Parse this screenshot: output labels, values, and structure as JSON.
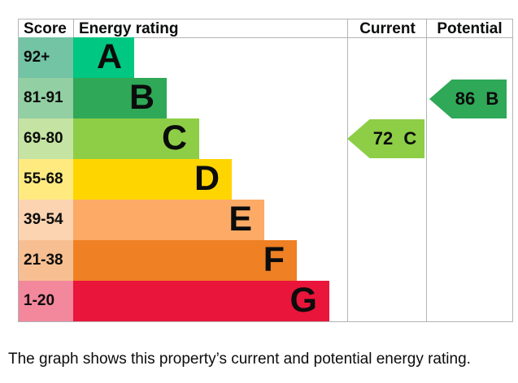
{
  "chart_data": {
    "type": "bar",
    "title": "",
    "categories": [
      "A",
      "B",
      "C",
      "D",
      "E",
      "F",
      "G"
    ],
    "score_ranges": [
      "92+",
      "81-91",
      "69-80",
      "55-68",
      "39-54",
      "21-38",
      "1-20"
    ],
    "band_colors": [
      "#00c781",
      "#2fa857",
      "#8dce46",
      "#ffd500",
      "#fcaa65",
      "#ef8023",
      "#e9153b"
    ],
    "score_cell_colors": [
      "#73c3a5",
      "#92cfa2",
      "#c5e3a2",
      "#ffea80",
      "#fdd4b2",
      "#f7bf91",
      "#f3879c"
    ],
    "current": {
      "value": 72,
      "band": "C"
    },
    "potential": {
      "value": 86,
      "band": "B"
    },
    "legend_position": "none",
    "caption": "The graph shows this property’s current and potential energy rating."
  },
  "header": {
    "score": "Score",
    "rating": "Energy rating",
    "current": "Current",
    "potential": "Potential"
  },
  "bands": [
    {
      "score": "92+",
      "letter": "A",
      "band_color": "#00c781",
      "score_color": "#73c3a5"
    },
    {
      "score": "81-91",
      "letter": "B",
      "band_color": "#2fa857",
      "score_color": "#92cfa2"
    },
    {
      "score": "69-80",
      "letter": "C",
      "band_color": "#8dce46",
      "score_color": "#c5e3a2"
    },
    {
      "score": "55-68",
      "letter": "D",
      "band_color": "#ffd500",
      "score_color": "#ffea80"
    },
    {
      "score": "39-54",
      "letter": "E",
      "band_color": "#fcaa65",
      "score_color": "#fdd4b2"
    },
    {
      "score": "21-38",
      "letter": "F",
      "band_color": "#ef8023",
      "score_color": "#f7bf91"
    },
    {
      "score": "1-20",
      "letter": "G",
      "band_color": "#e9153b",
      "score_color": "#f3879c"
    }
  ],
  "current_arrow": {
    "label": "72 C",
    "color": "#8dce46"
  },
  "potential_arrow": {
    "label": "86 B",
    "color": "#2fa857"
  },
  "caption": "The graph shows this property’s current and potential energy rating.",
  "colors": {
    "border": "#b1b4b6",
    "text": "#0b0c0c",
    "background": "#ffffff"
  }
}
